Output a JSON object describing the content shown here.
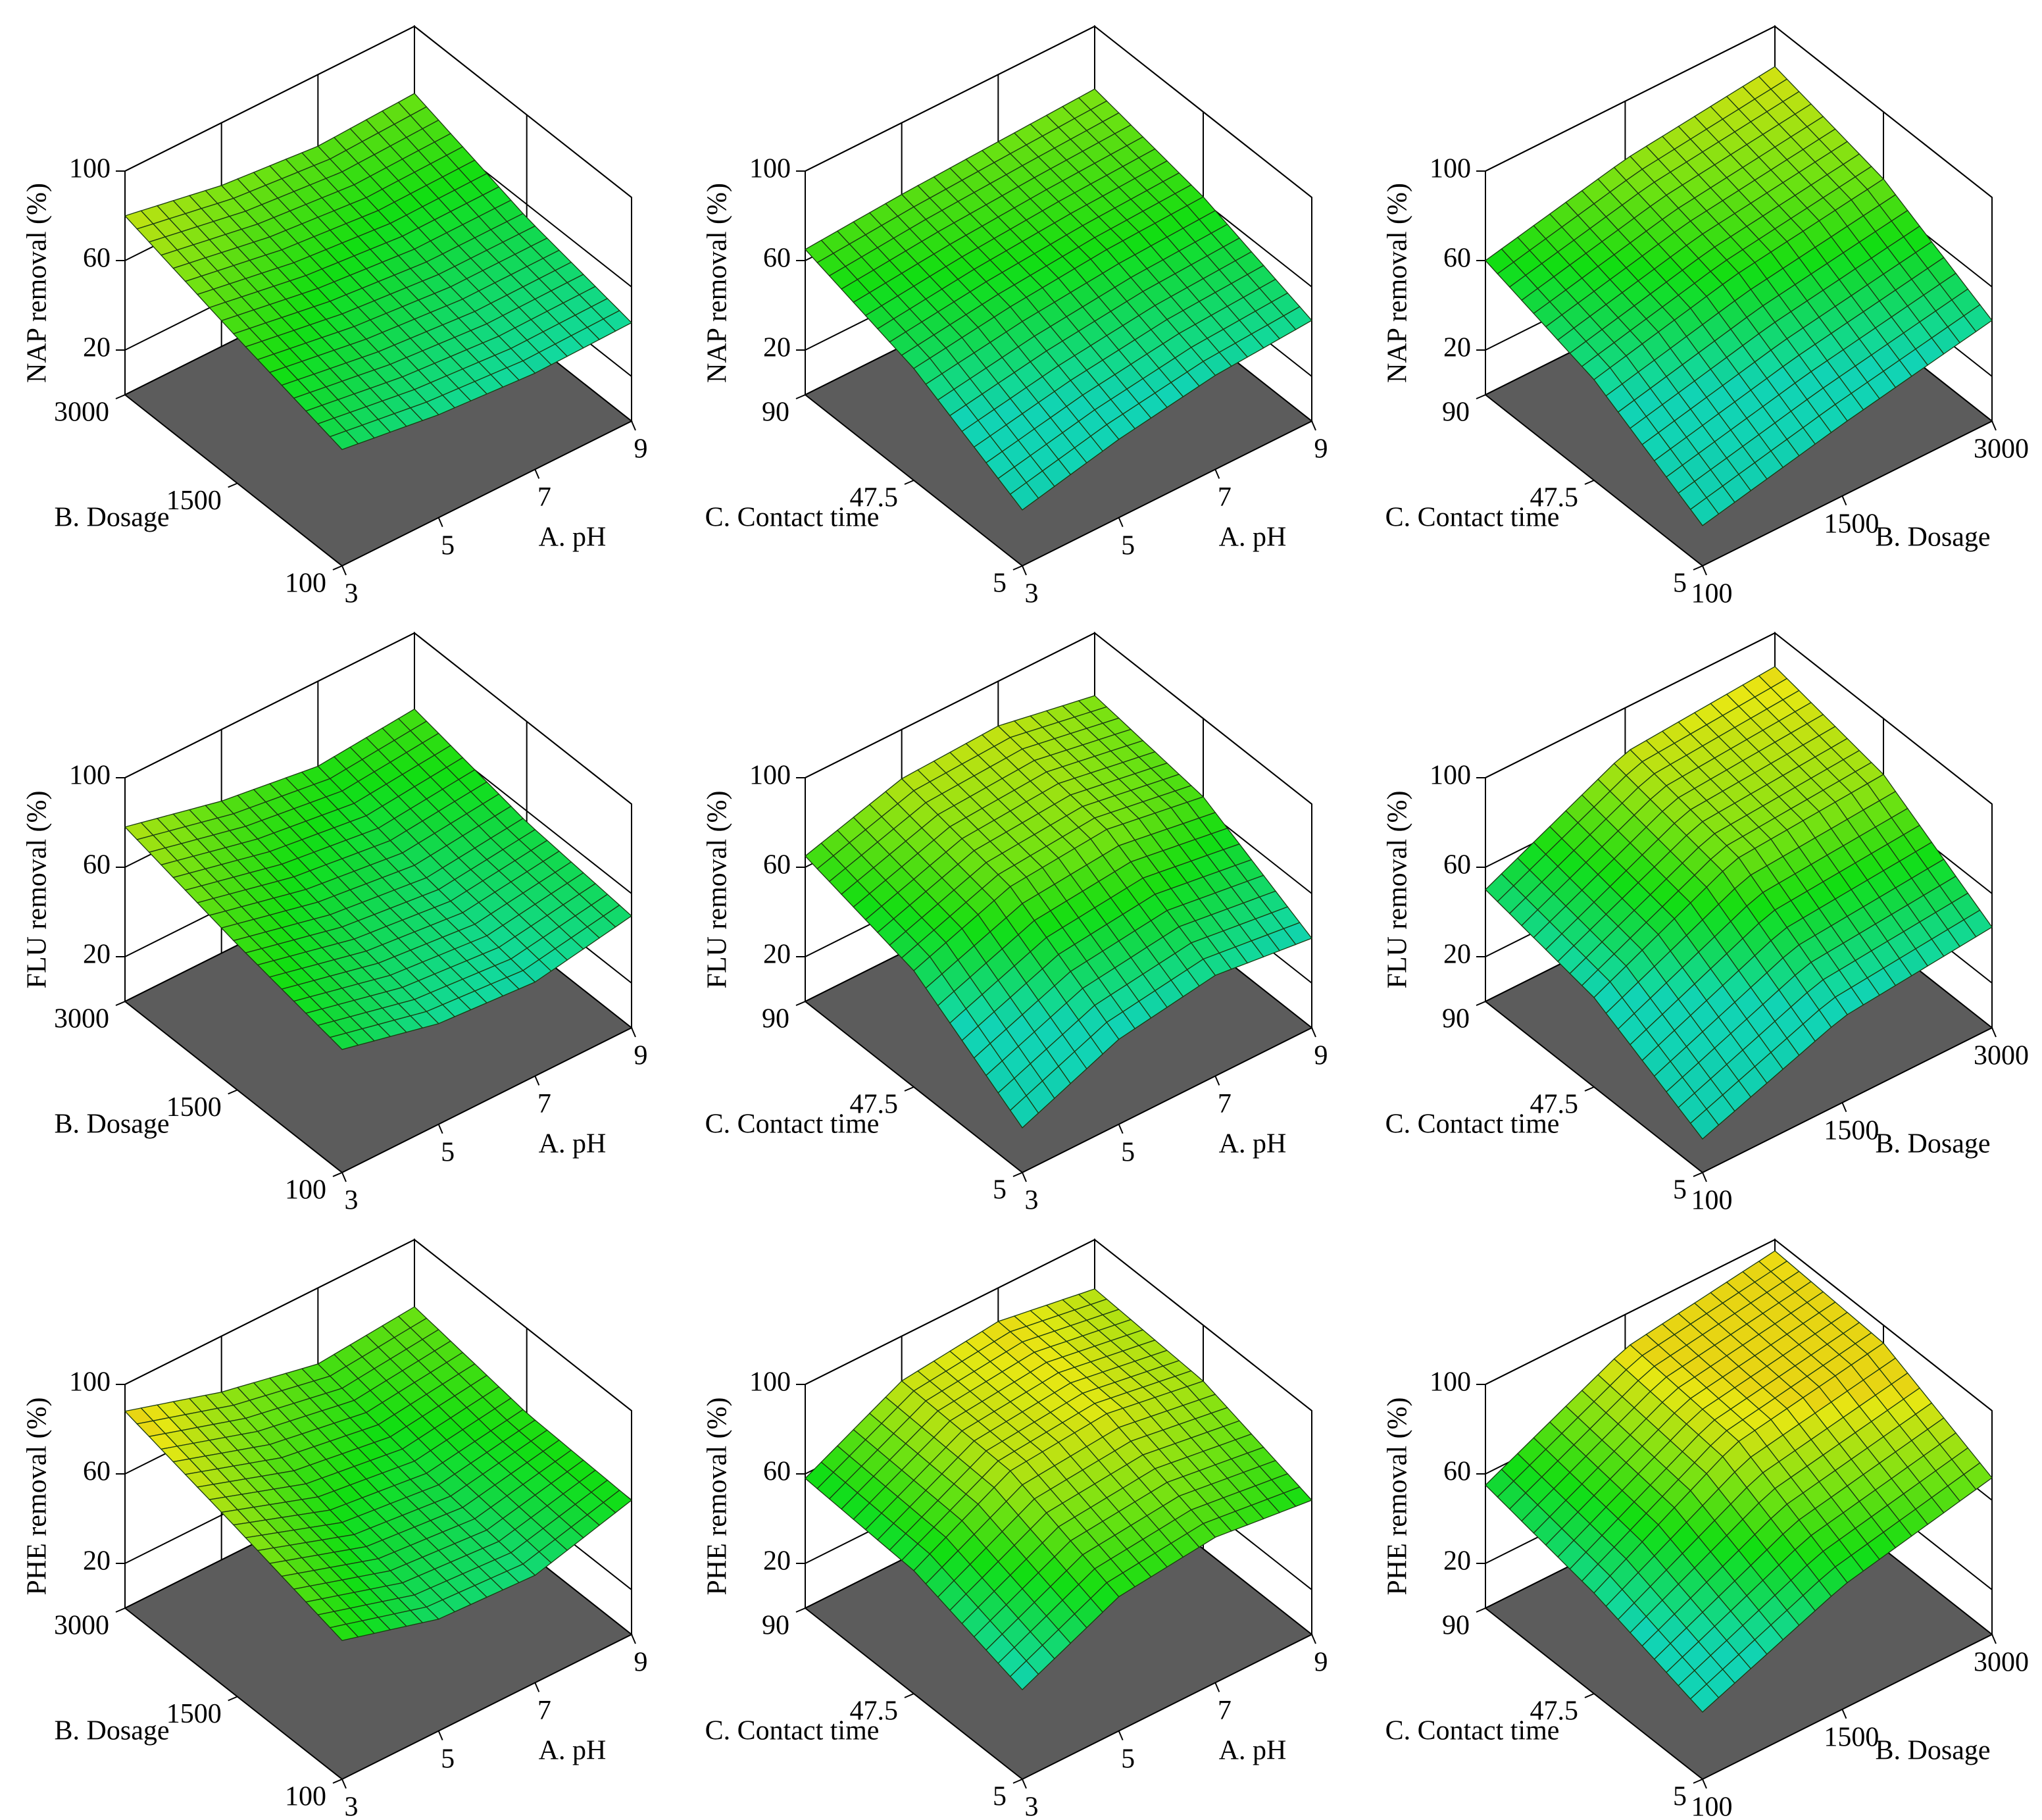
{
  "chart_data": [
    {
      "type": "surface3d",
      "zlabel": "NAP removal (%)",
      "xlabel": "A. pH",
      "ylabel": "B. Dosage",
      "xlim": [
        3,
        9
      ],
      "xticks": [
        3,
        5,
        7,
        9
      ],
      "ylim": [
        100,
        3000
      ],
      "yticks": [
        100,
        1500,
        3000
      ],
      "zlim": [
        0,
        100
      ],
      "zticks": [
        20,
        60,
        100
      ],
      "z": [
        [
          52,
          46,
          43,
          44
        ],
        [
          65,
          58,
          54,
          54
        ],
        [
          80,
          72,
          68,
          70
        ]
      ]
    },
    {
      "type": "surface3d",
      "zlabel": "NAP removal (%)",
      "xlabel": "A. pH",
      "ylabel": "C. Contact time",
      "xlim": [
        3,
        9
      ],
      "xticks": [
        3,
        5,
        7,
        9
      ],
      "ylim": [
        5,
        90
      ],
      "yticks": [
        5,
        47.5,
        90
      ],
      "zlim": [
        0,
        100
      ],
      "zticks": [
        20,
        60,
        100
      ],
      "z": [
        [
          25,
          35,
          42,
          45
        ],
        [
          50,
          56,
          60,
          62
        ],
        [
          65,
          68,
          70,
          72
        ]
      ]
    },
    {
      "type": "surface3d",
      "zlabel": "NAP removal (%)",
      "xlabel": "B. Dosage",
      "ylabel": "C. Contact time",
      "xlim": [
        100,
        3000
      ],
      "xticks": [
        100,
        1500,
        3000
      ],
      "ylim": [
        5,
        90
      ],
      "yticks": [
        5,
        47.5,
        90
      ],
      "zlim": [
        0,
        100
      ],
      "zticks": [
        20,
        60,
        100
      ],
      "z": [
        [
          18,
          32,
          45
        ],
        [
          45,
          60,
          70
        ],
        [
          60,
          74,
          82
        ]
      ]
    },
    {
      "type": "surface3d",
      "zlabel": "FLU removal (%)",
      "xlabel": "A. pH",
      "ylabel": "B. Dosage",
      "xlim": [
        3,
        9
      ],
      "xticks": [
        3,
        5,
        7,
        9
      ],
      "ylim": [
        100,
        3000
      ],
      "yticks": [
        100,
        1500,
        3000
      ],
      "zlim": [
        0,
        100
      ],
      "zticks": [
        20,
        60,
        100
      ],
      "z": [
        [
          55,
          45,
          42,
          50
        ],
        [
          65,
          55,
          50,
          55
        ],
        [
          78,
          68,
          62,
          66
        ]
      ]
    },
    {
      "type": "surface3d",
      "zlabel": "FLU removal (%)",
      "xlabel": "A. pH",
      "ylabel": "C. Contact time",
      "xlim": [
        3,
        9
      ],
      "xticks": [
        3,
        5,
        7,
        9
      ],
      "ylim": [
        5,
        90
      ],
      "yticks": [
        5,
        47.5,
        90
      ],
      "zlim": [
        0,
        100
      ],
      "zticks": [
        20,
        60,
        100
      ],
      "z": [
        [
          20,
          38,
          45,
          40
        ],
        [
          52,
          68,
          72,
          65
        ],
        [
          65,
          78,
          80,
          72
        ]
      ]
    },
    {
      "type": "surface3d",
      "zlabel": "FLU removal (%)",
      "xlabel": "B. Dosage",
      "ylabel": "C. Contact time",
      "xlim": [
        100,
        3000
      ],
      "xticks": [
        100,
        1500,
        3000
      ],
      "ylim": [
        5,
        90
      ],
      "yticks": [
        5,
        47.5,
        90
      ],
      "zlim": [
        0,
        100
      ],
      "zticks": [
        20,
        60,
        100
      ],
      "z": [
        [
          15,
          38,
          45
        ],
        [
          40,
          70,
          75
        ],
        [
          50,
          80,
          85
        ]
      ]
    },
    {
      "type": "surface3d",
      "zlabel": "PHE removal (%)",
      "xlabel": "A. pH",
      "ylabel": "B. Dosage",
      "xlim": [
        3,
        9
      ],
      "xticks": [
        3,
        5,
        7,
        9
      ],
      "ylim": [
        100,
        3000
      ],
      "yticks": [
        100,
        1500,
        3000
      ],
      "zlim": [
        0,
        100
      ],
      "zticks": [
        20,
        60,
        100
      ],
      "z": [
        [
          62,
          50,
          48,
          60
        ],
        [
          75,
          60,
          55,
          62
        ],
        [
          88,
          75,
          66,
          70
        ]
      ]
    },
    {
      "type": "surface3d",
      "zlabel": "PHE removal (%)",
      "xlabel": "A. pH",
      "ylabel": "C. Contact time",
      "xlim": [
        3,
        9
      ],
      "xticks": [
        3,
        5,
        7,
        9
      ],
      "ylim": [
        5,
        90
      ],
      "yticks": [
        5,
        47.5,
        90
      ],
      "zlim": [
        0,
        100
      ],
      "zticks": [
        20,
        60,
        100
      ],
      "z": [
        [
          40,
          60,
          65,
          60
        ],
        [
          55,
          78,
          82,
          75
        ],
        [
          58,
          80,
          85,
          78
        ]
      ]
    },
    {
      "type": "surface3d",
      "zlabel": "PHE removal (%)",
      "xlabel": "B. Dosage",
      "ylabel": "C. Contact time",
      "xlim": [
        100,
        3000
      ],
      "xticks": [
        100,
        1500,
        3000
      ],
      "ylim": [
        5,
        90
      ],
      "yticks": [
        5,
        47.5,
        90
      ],
      "zlim": [
        0,
        100
      ],
      "zticks": [
        20,
        60,
        100
      ],
      "z": [
        [
          30,
          55,
          70
        ],
        [
          45,
          80,
          92
        ],
        [
          55,
          85,
          95
        ]
      ]
    }
  ]
}
